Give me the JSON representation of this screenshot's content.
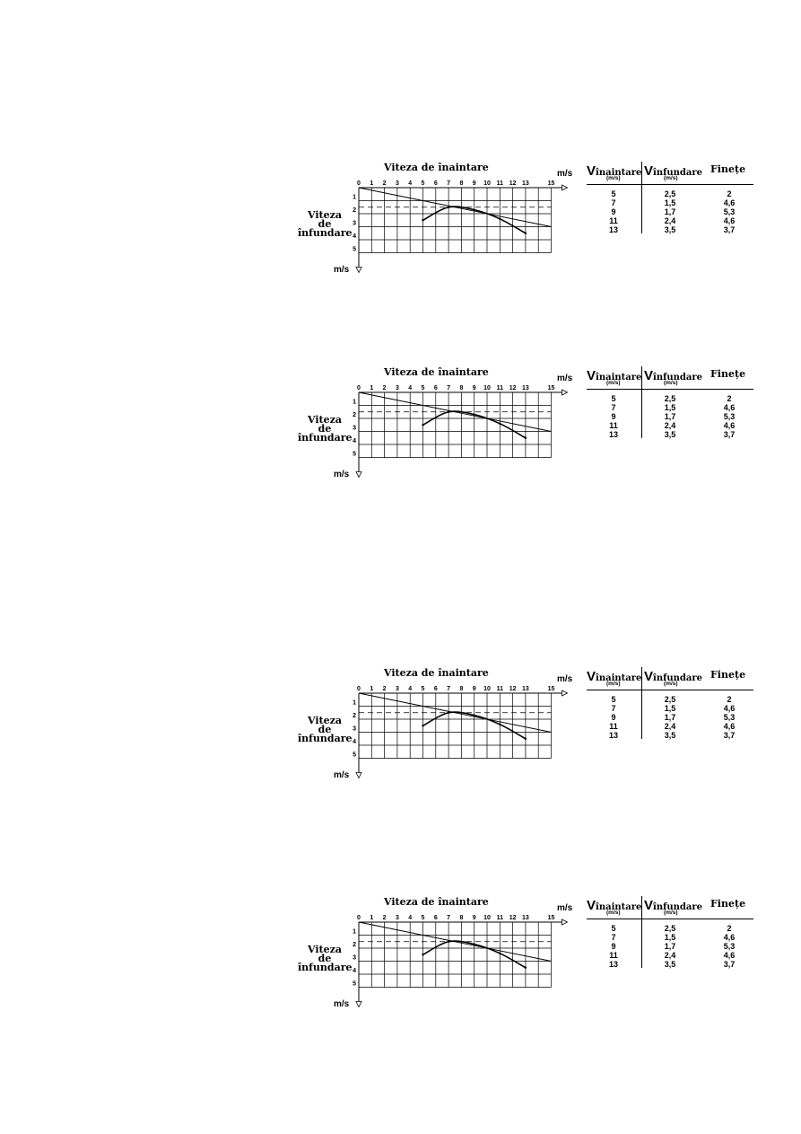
{
  "chart_data": [
    {
      "type": "line",
      "title": "Viteza de înaintare",
      "xlabel": "Viteza de înaintare",
      "ylabel": [
        "Viteza",
        "de",
        "înfundare"
      ],
      "x_unit": "m/s",
      "y_unit": "m/s",
      "xlim": [
        0,
        15
      ],
      "ylim": [
        0,
        5
      ],
      "y_inverted": true,
      "grid": true,
      "x_ticks": [
        "0",
        "1",
        "2",
        "3",
        "4",
        "5",
        "6",
        "7",
        "8",
        "9",
        "10",
        "11",
        "12",
        "13",
        "15"
      ],
      "y_ticks": [
        "1",
        "2",
        "3",
        "4",
        "5"
      ],
      "polar_curve": {
        "x": [
          5,
          7,
          9,
          11,
          13
        ],
        "y": [
          2.5,
          1.5,
          1.7,
          2.4,
          3.5
        ]
      },
      "tangent_line": {
        "x": [
          0,
          15
        ],
        "y": [
          0,
          3
        ]
      },
      "min_sink_level": 1.5,
      "table": {
        "headers": [
          {
            "big": "V",
            "name": "înaintare",
            "unit": "(m/s)"
          },
          {
            "big": "V",
            "name": "înfundare",
            "unit": "(m/s)"
          },
          {
            "big": "",
            "name": "Finețe",
            "unit": ""
          }
        ],
        "rows": [
          [
            "5",
            "2,5",
            "2"
          ],
          [
            "7",
            "1,5",
            "4,6"
          ],
          [
            "9",
            "1,7",
            "5,3"
          ],
          [
            "11",
            "2,4",
            "4,6"
          ],
          [
            "13",
            "3,5",
            "3,7"
          ]
        ]
      }
    },
    {
      "type": "line",
      "title": "Viteza de înaintare",
      "xlabel": "Viteza de înaintare",
      "ylabel": [
        "Viteza",
        "de",
        "înfundare"
      ],
      "x_unit": "m/s",
      "y_unit": "m/s",
      "xlim": [
        0,
        15
      ],
      "ylim": [
        0,
        5
      ],
      "y_inverted": true,
      "grid": true,
      "x_ticks": [
        "0",
        "1",
        "2",
        "3",
        "4",
        "5",
        "6",
        "7",
        "8",
        "9",
        "10",
        "11",
        "12",
        "13",
        "15"
      ],
      "y_ticks": [
        "1",
        "2",
        "3",
        "4",
        "5"
      ],
      "polar_curve": {
        "x": [
          5,
          7,
          9,
          11,
          13
        ],
        "y": [
          2.5,
          1.5,
          1.7,
          2.4,
          3.5
        ]
      },
      "tangent_line": {
        "x": [
          0,
          15
        ],
        "y": [
          0,
          3
        ]
      },
      "min_sink_level": 1.5,
      "table": {
        "headers": [
          {
            "big": "V",
            "name": "înaintare",
            "unit": "(m/s)"
          },
          {
            "big": "V",
            "name": "înfundare",
            "unit": "(m/s)"
          },
          {
            "big": "",
            "name": "Finețe",
            "unit": ""
          }
        ],
        "rows": [
          [
            "5",
            "2,5",
            "2"
          ],
          [
            "7",
            "1,5",
            "4,6"
          ],
          [
            "9",
            "1,7",
            "5,3"
          ],
          [
            "11",
            "2,4",
            "4,6"
          ],
          [
            "13",
            "3,5",
            "3,7"
          ]
        ]
      }
    },
    {
      "type": "line",
      "title": "Viteza de înaintare",
      "xlabel": "Viteza de înaintare",
      "ylabel": [
        "Viteza",
        "de",
        "înfundare"
      ],
      "x_unit": "m/s",
      "y_unit": "m/s",
      "xlim": [
        0,
        15
      ],
      "ylim": [
        0,
        5
      ],
      "y_inverted": true,
      "grid": true,
      "x_ticks": [
        "0",
        "1",
        "2",
        "3",
        "4",
        "5",
        "6",
        "7",
        "8",
        "9",
        "10",
        "11",
        "12",
        "13",
        "15"
      ],
      "y_ticks": [
        "1",
        "2",
        "3",
        "4",
        "5"
      ],
      "polar_curve": {
        "x": [
          5,
          7,
          9,
          11,
          13
        ],
        "y": [
          2.5,
          1.5,
          1.7,
          2.4,
          3.5
        ]
      },
      "tangent_line": {
        "x": [
          0,
          15
        ],
        "y": [
          0,
          3
        ]
      },
      "min_sink_level": 1.5,
      "table": {
        "headers": [
          {
            "big": "V",
            "name": "înaintare",
            "unit": "(m/s)"
          },
          {
            "big": "V",
            "name": "înfundare",
            "unit": "(m/s)"
          },
          {
            "big": "",
            "name": "Finețe",
            "unit": ""
          }
        ],
        "rows": [
          [
            "5",
            "2,5",
            "2"
          ],
          [
            "7",
            "1,5",
            "4,6"
          ],
          [
            "9",
            "1,7",
            "5,3"
          ],
          [
            "11",
            "2,4",
            "4,6"
          ],
          [
            "13",
            "3,5",
            "3,7"
          ]
        ]
      }
    },
    {
      "type": "line",
      "title": "Viteza de înaintare",
      "xlabel": "Viteza de înaintare",
      "ylabel": [
        "Viteza",
        "de",
        "înfundare"
      ],
      "x_unit": "m/s",
      "y_unit": "m/s",
      "xlim": [
        0,
        15
      ],
      "ylim": [
        0,
        5
      ],
      "y_inverted": true,
      "grid": true,
      "x_ticks": [
        "0",
        "1",
        "2",
        "3",
        "4",
        "5",
        "6",
        "7",
        "8",
        "9",
        "10",
        "11",
        "12",
        "13",
        "15"
      ],
      "y_ticks": [
        "1",
        "2",
        "3",
        "4",
        "5"
      ],
      "polar_curve": {
        "x": [
          5,
          7,
          9,
          11,
          13
        ],
        "y": [
          2.5,
          1.5,
          1.7,
          2.4,
          3.5
        ]
      },
      "tangent_line": {
        "x": [
          0,
          15
        ],
        "y": [
          0,
          3
        ]
      },
      "min_sink_level": 1.5,
      "table": {
        "headers": [
          {
            "big": "V",
            "name": "înaintare",
            "unit": "(m/s)"
          },
          {
            "big": "V",
            "name": "înfundare",
            "unit": "(m/s)"
          },
          {
            "big": "",
            "name": "Finețe",
            "unit": ""
          }
        ],
        "rows": [
          [
            "5",
            "2,5",
            "2"
          ],
          [
            "7",
            "1,5",
            "4,6"
          ],
          [
            "9",
            "1,7",
            "5,3"
          ],
          [
            "11",
            "2,4",
            "4,6"
          ],
          [
            "13",
            "3,5",
            "3,7"
          ]
        ]
      }
    }
  ]
}
